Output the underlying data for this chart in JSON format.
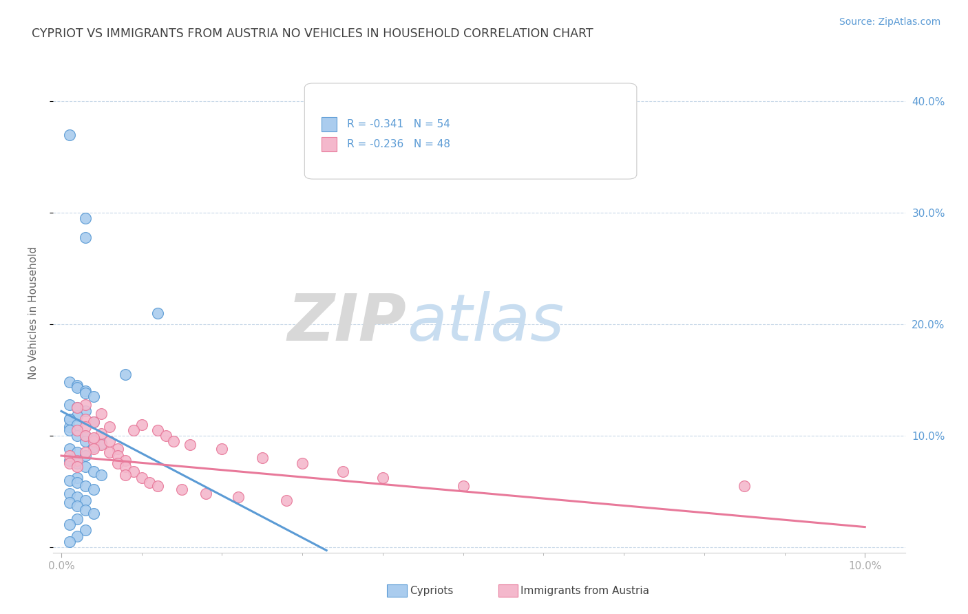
{
  "title": "CYPRIOT VS IMMIGRANTS FROM AUSTRIA NO VEHICLES IN HOUSEHOLD CORRELATION CHART",
  "source": "Source: ZipAtlas.com",
  "ylabel": "No Vehicles in Household",
  "watermark_zip": "ZIP",
  "watermark_atlas": "atlas",
  "legend_R1": "R = -0.341",
  "legend_N1": "N = 54",
  "legend_R2": "R = -0.236",
  "legend_N2": "N = 48",
  "legend_label1": "Cypriots",
  "legend_label2": "Immigrants from Austria",
  "cypriot_color": "#5b9bd5",
  "austria_color": "#e8799a",
  "cypriot_scatter_color": "#aaccee",
  "austria_scatter_color": "#f4b8cc",
  "cypriot_line": {
    "x": [
      0.0,
      0.033
    ],
    "y": [
      0.122,
      -0.003
    ]
  },
  "austria_line": {
    "x": [
      0.0,
      0.1
    ],
    "y": [
      0.082,
      0.018
    ]
  },
  "xlim": [
    -0.001,
    0.105
  ],
  "ylim": [
    -0.005,
    0.425
  ],
  "yticks": [
    0.0,
    0.1,
    0.2,
    0.3,
    0.4
  ],
  "ytick_labels_right": [
    "",
    "10.0%",
    "20.0%",
    "30.0%",
    "40.0%"
  ],
  "xtick_major": [
    0.0,
    0.1
  ],
  "xtick_major_labels": [
    "0.0%",
    "10.0%"
  ],
  "grid_color": "#c8d8e8",
  "background_color": "#ffffff",
  "title_color": "#404040",
  "source_color": "#5b9bd5",
  "axis_label_color": "#5b9bd5",
  "tick_color": "#aaaaaa"
}
